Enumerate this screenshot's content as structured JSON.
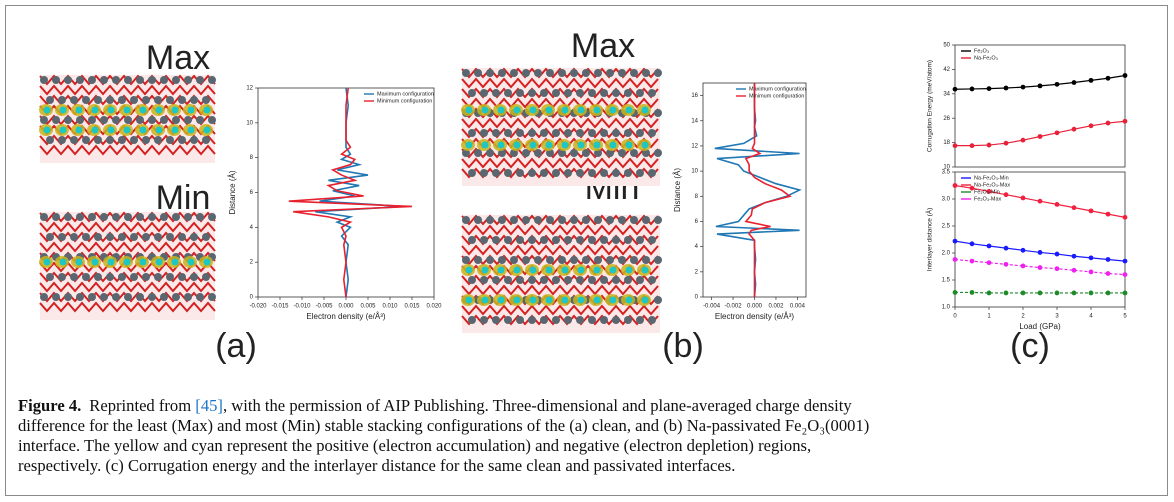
{
  "chart_data": [
    {
      "type": "line",
      "orientation": "vertical",
      "legend": "upper right",
      "xlabel": "Electron density (e/Å³)",
      "ylabel": "Distance (Å)",
      "xlim": [
        -0.02,
        0.02
      ],
      "xticks": [
        {
          "value": -0.02,
          "label": "-0.020"
        },
        {
          "value": -0.015,
          "label": "-0.015"
        },
        {
          "value": -0.01,
          "label": "-0.010"
        },
        {
          "value": -0.005,
          "label": "-0.005"
        },
        {
          "value": 0,
          "label": "0.000"
        },
        {
          "value": 0.005,
          "label": "0.005"
        },
        {
          "value": 0.01,
          "label": "0.010"
        },
        {
          "value": 0.015,
          "label": "0.015"
        },
        {
          "value": 0.02,
          "label": "0.020"
        }
      ],
      "ylim": [
        0,
        12
      ],
      "yticks": [
        0,
        2,
        4,
        6,
        8,
        10,
        12
      ],
      "y": [
        0,
        1,
        2,
        3,
        3.5,
        4,
        4.3,
        4.6,
        4.9,
        5.2,
        5.5,
        5.8,
        6.1,
        6.4,
        6.7,
        7.0,
        7.3,
        7.6,
        7.9,
        8.2,
        8.6,
        9,
        10,
        11,
        12
      ],
      "series": [
        {
          "name": "Maximum configuration",
          "color": "#1f77b4",
          "values": [
            0,
            0.0005,
            0,
            0.0005,
            -0.001,
            0.001,
            -0.002,
            0.001,
            -0.007,
            0.013,
            -0.006,
            0.002,
            -0.003,
            0.003,
            -0.004,
            0.005,
            -0.002,
            0.003,
            -0.001,
            0.001,
            0,
            0,
            0,
            0.0005,
            0
          ]
        },
        {
          "name": "Minimum configuration",
          "color": "#e8212e",
          "values": [
            0,
            -0.0005,
            0,
            -0.0005,
            0,
            -0.001,
            0.001,
            -0.004,
            -0.012,
            0.015,
            -0.013,
            0.004,
            -0.002,
            -0.004,
            0.002,
            -0.001,
            -0.003,
            0.001,
            0.002,
            -0.001,
            0.001,
            0,
            0,
            0,
            0.0005
          ]
        }
      ]
    },
    {
      "type": "line",
      "orientation": "vertical",
      "legend": "upper right",
      "xlabel": "Electron density (e/Å³)",
      "ylabel": "Distance (Å)",
      "xlim": [
        -0.0048,
        0.0048
      ],
      "xticks": [
        {
          "value": -0.004,
          "label": "-0.004"
        },
        {
          "value": -0.002,
          "label": "-0.002"
        },
        {
          "value": 0,
          "label": "0.000"
        },
        {
          "value": 0.002,
          "label": "0.002"
        },
        {
          "value": 0.004,
          "label": "0.004"
        }
      ],
      "ylim": [
        0,
        17
      ],
      "yticks": [
        0,
        2,
        4,
        6,
        8,
        10,
        12,
        14,
        16
      ],
      "y": [
        0,
        1,
        2,
        3,
        4,
        4.5,
        5.0,
        5.3,
        5.6,
        6.0,
        6.5,
        7.0,
        7.5,
        8.0,
        8.5,
        9.0,
        9.5,
        10.0,
        10.5,
        11.0,
        11.4,
        11.8,
        12.2,
        12.8,
        13.5,
        14,
        15,
        16,
        17
      ],
      "series": [
        {
          "name": "Maximum configuration",
          "color": "#1f77b4",
          "values": [
            0,
            0.0001,
            0,
            0.0001,
            0,
            0,
            -0.0035,
            0.0042,
            -0.0036,
            -0.0015,
            -0.001,
            -0.0005,
            0.001,
            0.003,
            0.0042,
            0.002,
            0.0005,
            -0.001,
            -0.0015,
            -0.0035,
            0.0042,
            -0.0037,
            -0.001,
            0.0002,
            0,
            0.0001,
            0,
            0,
            0
          ]
        },
        {
          "name": "Minimum configuration",
          "color": "#e8212e",
          "values": [
            0,
            0,
            0,
            0,
            0,
            0,
            -0.0005,
            -0.0003,
            0.0015,
            -0.0008,
            -0.0003,
            -0.0002,
            0.001,
            0.0033,
            0.0025,
            0.001,
            0,
            -0.0005,
            -0.0005,
            -0.0008,
            0.0005,
            -0.0002,
            0,
            0,
            0,
            0,
            0,
            0,
            0
          ]
        }
      ]
    },
    {
      "type": "line",
      "orientation": "horizontal",
      "legend": "upper left",
      "markers": true,
      "ylabel": "Corrugation Energy (meV/atom)",
      "xlim": [
        0,
        5
      ],
      "ylim": [
        10,
        50
      ],
      "yticks": [
        10,
        18,
        26,
        34,
        42,
        50
      ],
      "x": [
        0,
        0.5,
        1,
        1.5,
        2,
        2.5,
        3,
        3.5,
        4,
        4.5,
        5
      ],
      "series": [
        {
          "name": "Fe₂O₃",
          "color": "#000000",
          "values": [
            35.5,
            35.6,
            35.7,
            35.9,
            36.2,
            36.6,
            37.1,
            37.7,
            38.4,
            39.1,
            40
          ]
        },
        {
          "name": "Na-Fe₂O₃",
          "color": "#e8213a",
          "values": [
            17,
            17,
            17.2,
            17.8,
            18.8,
            20,
            21.2,
            22.4,
            23.5,
            24.4,
            25
          ]
        }
      ]
    },
    {
      "type": "line",
      "orientation": "horizontal",
      "legend": "upper left",
      "markers": true,
      "xlabel": "Load (GPa)",
      "ylabel": "Interlayer distance (Å)",
      "xlim": [
        0,
        5
      ],
      "xticks": [
        0,
        1,
        2,
        3,
        4,
        5
      ],
      "ylim": [
        1,
        3.5
      ],
      "yticks": [
        {
          "value": 1,
          "label": "1.0"
        },
        1.5,
        {
          "value": 2,
          "label": "2.0"
        },
        2.5,
        {
          "value": 3,
          "label": "3.0"
        },
        3.5
      ],
      "x": [
        0,
        0.5,
        1,
        1.5,
        2,
        2.5,
        3,
        3.5,
        4,
        4.5,
        5
      ],
      "series": [
        {
          "name": "Na-Fe₂O₃-Min",
          "color": "#1a1aff",
          "values": [
            2.22,
            2.17,
            2.13,
            2.09,
            2.05,
            2.01,
            1.98,
            1.94,
            1.91,
            1.88,
            1.85
          ]
        },
        {
          "name": "Na-Fe₂O₃-Max",
          "color": "#f0203e",
          "values": [
            3.25,
            3.2,
            3.14,
            3.08,
            3.02,
            2.96,
            2.9,
            2.84,
            2.78,
            2.72,
            2.66
          ]
        },
        {
          "name": "Fe₂O₃-Min",
          "color": "#1e8a2a",
          "linestyle": "dashed",
          "values": [
            1.27,
            1.27,
            1.26,
            1.26,
            1.26,
            1.26,
            1.26,
            1.26,
            1.26,
            1.26,
            1.26
          ]
        },
        {
          "name": "Fe₂O₃-Max",
          "color": "#ee22ee",
          "linestyle": "dashed",
          "values": [
            1.88,
            1.85,
            1.82,
            1.79,
            1.76,
            1.73,
            1.71,
            1.68,
            1.65,
            1.62,
            1.6
          ]
        }
      ]
    }
  ],
  "structures": [
    {
      "top": "Max",
      "bottom": "Min"
    },
    {
      "top": "Max",
      "bottom": "Min"
    }
  ],
  "panel_labels": [
    "(a)",
    "(b)",
    "(c)"
  ],
  "caption": {
    "label": "Figure 4.",
    "lines": [
      [
        "Reprinted from ",
        "[45]",
        ", with the permission of AIP Publishing. Three-dimensional and plane-averaged charge density"
      ],
      [
        "difference for the least (Max) and most (Min) stable stacking configurations of the (a) clean, and (b) Na-passivated Fe₂O₃(0001)"
      ],
      [
        "interface. The yellow and cyan represent the positive (electron accumulation) and negative (electron depletion) regions,"
      ],
      [
        "respectively. (c) Corrugation energy and the interlayer distance for the same clean and passivated interfaces."
      ]
    ]
  }
}
